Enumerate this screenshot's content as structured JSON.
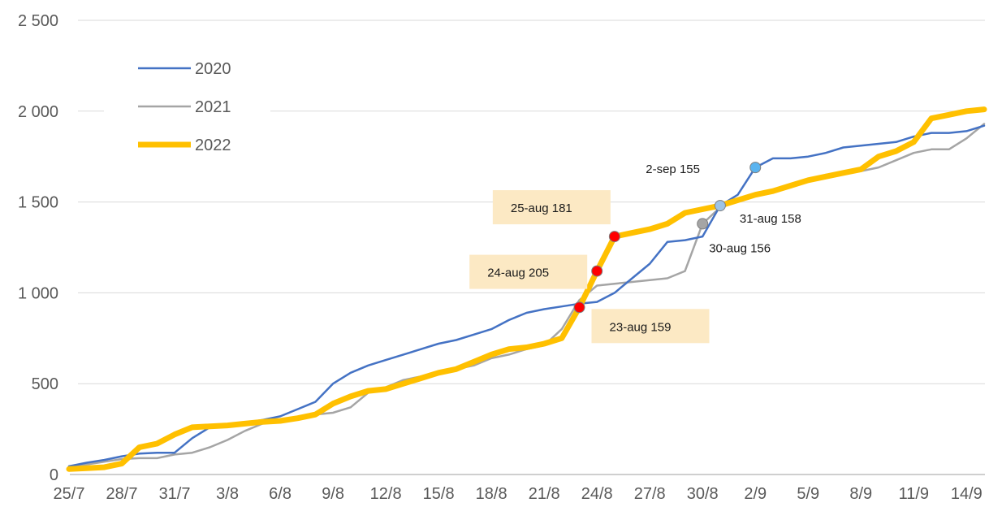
{
  "chart_data": {
    "type": "line",
    "title": "",
    "xlabel": "",
    "ylabel": "",
    "ylim": [
      0,
      2500
    ],
    "yticks": [
      0,
      500,
      1000,
      1500,
      2000,
      2500
    ],
    "ytick_labels": [
      "0",
      "500",
      "1 000",
      "1 500",
      "2 000",
      "2 500"
    ],
    "categories": [
      "25/7",
      "26/7",
      "27/7",
      "28/7",
      "29/7",
      "30/7",
      "31/7",
      "1/8",
      "2/8",
      "3/8",
      "4/8",
      "5/8",
      "6/8",
      "7/8",
      "8/8",
      "9/8",
      "10/8",
      "11/8",
      "12/8",
      "13/8",
      "14/8",
      "15/8",
      "16/8",
      "17/8",
      "18/8",
      "19/8",
      "20/8",
      "21/8",
      "22/8",
      "23/8",
      "24/8",
      "25/8",
      "26/8",
      "27/8",
      "28/8",
      "29/8",
      "30/8",
      "31/8",
      "1/9",
      "2/9",
      "3/9",
      "4/9",
      "5/9",
      "6/9",
      "7/9",
      "8/9",
      "9/9",
      "10/9",
      "11/9",
      "12/9",
      "13/9",
      "14/9",
      "15/9"
    ],
    "xtick_labels": [
      "25/7",
      "28/7",
      "31/7",
      "3/8",
      "6/8",
      "9/8",
      "12/8",
      "15/8",
      "18/8",
      "21/8",
      "24/8",
      "27/8",
      "30/8",
      "2/9",
      "5/9",
      "8/9",
      "11/9",
      "14/9"
    ],
    "grid": "horizontal",
    "legend": "top-left",
    "series": [
      {
        "name": "2020",
        "color": "#4472c4",
        "width": 2.5,
        "values": [
          45,
          65,
          80,
          100,
          115,
          120,
          120,
          200,
          260,
          270,
          285,
          300,
          320,
          360,
          400,
          500,
          560,
          600,
          630,
          660,
          690,
          720,
          740,
          770,
          800,
          850,
          890,
          910,
          925,
          940,
          950,
          1000,
          1080,
          1160,
          1280,
          1290,
          1310,
          1480,
          1540,
          1690,
          1740,
          1740,
          1750,
          1770,
          1800,
          1810,
          1820,
          1830,
          1860,
          1880,
          1880,
          1890,
          1920
        ]
      },
      {
        "name": "2021",
        "color": "#a5a5a5",
        "width": 2.5,
        "values": [
          40,
          55,
          70,
          85,
          90,
          90,
          110,
          120,
          150,
          190,
          240,
          280,
          300,
          310,
          330,
          340,
          370,
          450,
          480,
          520,
          540,
          560,
          580,
          600,
          640,
          660,
          690,
          710,
          800,
          960,
          1040,
          1050,
          1060,
          1070,
          1080,
          1120,
          1380,
          1470,
          1520,
          1540,
          1560,
          1580,
          1620,
          1650,
          1660,
          1670,
          1690,
          1730,
          1770,
          1790,
          1790,
          1850,
          1930
        ]
      },
      {
        "name": "2022",
        "color": "#ffc000",
        "width": 7,
        "values": [
          30,
          35,
          40,
          60,
          150,
          170,
          220,
          260,
          265,
          270,
          280,
          290,
          295,
          310,
          330,
          390,
          430,
          460,
          470,
          500,
          530,
          560,
          580,
          620,
          660,
          690,
          700,
          720,
          750,
          920,
          1120,
          1310,
          1330,
          1350,
          1380,
          1440,
          1460,
          1480,
          1510,
          1540,
          1560,
          1590,
          1620,
          1640,
          1660,
          1680,
          1750,
          1780,
          1830,
          1960,
          1980,
          2000,
          2010
        ]
      }
    ],
    "annotations": [
      {
        "series": "2022",
        "category": "23/8",
        "value": 920,
        "text": "23-aug  159",
        "marker": "#ff0000",
        "box": "#fce9c4",
        "placement": "lower-right"
      },
      {
        "series": "2022",
        "category": "24/8",
        "value": 1120,
        "text": "24-aug  205",
        "marker": "#ff0000",
        "box": "#fce9c4",
        "placement": "left"
      },
      {
        "series": "2022",
        "category": "25/8",
        "value": 1310,
        "text": "25-aug  181",
        "marker": "#ff0000",
        "box": "#fce9c4",
        "placement": "upper-left"
      },
      {
        "series": "2021",
        "category": "30/8",
        "value": 1380,
        "text": "30-aug  156",
        "marker": "#a5a5a5",
        "box": "",
        "placement": "below-right"
      },
      {
        "series": "2020",
        "category": "31/8",
        "value": 1480,
        "text": "31-aug  158",
        "marker": "#9dc3e6",
        "box": "",
        "placement": "right"
      },
      {
        "series": "2020",
        "category": "2/9",
        "value": 1690,
        "text": "2-sep  155",
        "marker": "#5ab4f0",
        "box": "",
        "placement": "left"
      }
    ]
  }
}
